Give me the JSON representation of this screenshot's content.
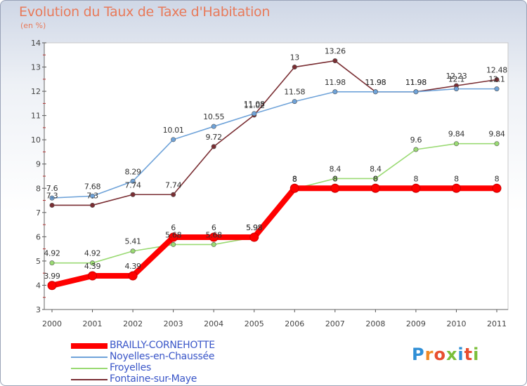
{
  "chart_data": {
    "type": "line",
    "title": "Evolution du Taux de Taxe d'Habitation",
    "subtitle": "(en %)",
    "x": [
      "2000",
      "2001",
      "2002",
      "2003",
      "2004",
      "2005",
      "2006",
      "2007",
      "2008",
      "2009",
      "2010",
      "2011"
    ],
    "yticks": [
      "3",
      "4",
      "5",
      "6",
      "7",
      "8",
      "9",
      "10",
      "11",
      "12",
      "13",
      "14"
    ],
    "ylim": [
      3,
      14
    ],
    "series": [
      {
        "name": "BRAILLY-CORNEHOTTE",
        "color": "#ff0000",
        "values": [
          3.99,
          4.39,
          4.39,
          5.98,
          5.98,
          5.98,
          8,
          8,
          8,
          8,
          8,
          8
        ],
        "labels": [
          "3.99",
          "4.39",
          "4.39",
          "6",
          "6",
          "5.98",
          "8",
          "8",
          "8",
          "8",
          "8",
          "8"
        ]
      },
      {
        "name": "Noyelles-en-Chaussée",
        "color": "#6fa3d9",
        "values": [
          7.6,
          7.68,
          8.29,
          10.01,
          10.55,
          11.08,
          11.58,
          11.98,
          11.98,
          11.98,
          12.1,
          12.1
        ],
        "labels": [
          "7.6",
          "7.68",
          "8.29",
          "10.01",
          "10.55",
          "11.08",
          "11.58",
          "11.98",
          "11.98",
          "11.98",
          "12.1",
          "12.1"
        ]
      },
      {
        "name": "Froyelles",
        "color": "#9ada73",
        "values": [
          4.92,
          4.92,
          5.41,
          5.68,
          5.68,
          5.98,
          7.98,
          8.4,
          8.4,
          9.6,
          9.84,
          9.84
        ],
        "labels": [
          "4.92",
          "4.92",
          "5.41",
          "5.68",
          "5.68",
          "5.98",
          "8",
          "8.4",
          "8.4",
          "9.6",
          "9.84",
          "9.84"
        ]
      },
      {
        "name": "Fontaine-sur-Maye",
        "color": "#7a2e33",
        "values": [
          7.3,
          7.3,
          7.74,
          7.74,
          9.72,
          11.02,
          13,
          13.26,
          11.98,
          11.98,
          12.23,
          12.48
        ],
        "labels": [
          "7.3",
          "7.3",
          "7.74",
          "7.74",
          "9.72",
          "11.02",
          "13",
          "13.26",
          "11.98",
          "11.98",
          "12.23",
          "12.48"
        ]
      }
    ]
  },
  "legend": {
    "items": [
      "BRAILLY-CORNEHOTTE",
      "Noyelles-en-Chaussée",
      "Froyelles",
      "Fontaine-sur-Maye"
    ]
  },
  "logo": {
    "text": "Proxiti",
    "colors": [
      "#2f8fd6",
      "#f08a25",
      "#e84e2f",
      "#7bbf3a",
      "#2f8fd6",
      "#e84e2f",
      "#7bbf3a"
    ]
  }
}
